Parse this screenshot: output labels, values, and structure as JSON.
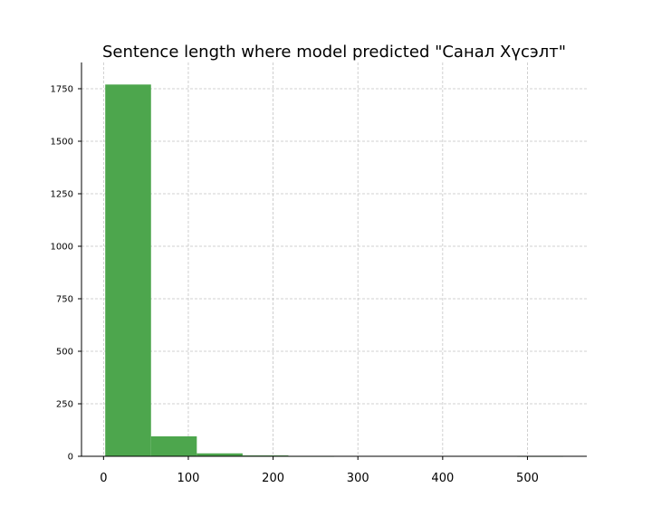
{
  "chart_data": {
    "type": "bar",
    "subtype": "histogram",
    "title": "Sentence length where model predicted \"Санал Хүсэлт\"",
    "xlabel": "",
    "ylabel": "",
    "bins": [
      {
        "x0": 2,
        "x1": 56,
        "count": 1770
      },
      {
        "x0": 56,
        "x1": 110,
        "count": 95
      },
      {
        "x0": 110,
        "x1": 164,
        "count": 14
      },
      {
        "x0": 164,
        "x1": 218,
        "count": 4
      },
      {
        "x0": 218,
        "x1": 272,
        "count": 1
      },
      {
        "x0": 272,
        "x1": 326,
        "count": 0
      },
      {
        "x0": 326,
        "x1": 380,
        "count": 0
      },
      {
        "x0": 380,
        "x1": 434,
        "count": 0
      },
      {
        "x0": 434,
        "x1": 488,
        "count": 0
      },
      {
        "x0": 488,
        "x1": 542,
        "count": 1
      }
    ],
    "xlim": [
      -26,
      570
    ],
    "ylim": [
      0,
      1875
    ],
    "xticks": [
      0,
      100,
      200,
      300,
      400,
      500
    ],
    "yticks": [
      0,
      250,
      500,
      750,
      1000,
      1250,
      1500,
      1750
    ],
    "grid": true,
    "bar_color": "#4da64d",
    "grid_color": "#c4c4c4"
  }
}
